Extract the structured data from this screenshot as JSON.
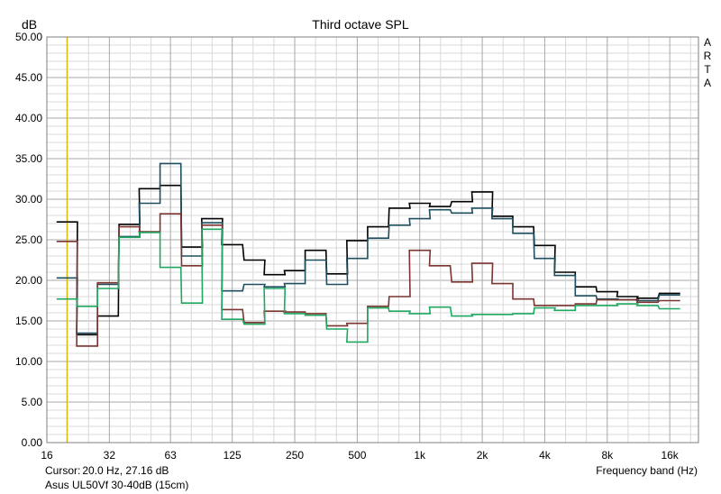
{
  "chart_data": {
    "type": "line",
    "title": "Third octave SPL",
    "ylabel": "dB",
    "xlabel": "Frequency band (Hz)",
    "watermark": "ARTA",
    "ylim": [
      0,
      50
    ],
    "yticks": [
      "0.00",
      "5.00",
      "10.00",
      "15.00",
      "20.00",
      "25.00",
      "30.00",
      "35.00",
      "40.00",
      "45.00",
      "50.00"
    ],
    "xscale": "log",
    "xlim": [
      16,
      22000
    ],
    "xticks": [
      {
        "value": 16,
        "label": "16"
      },
      {
        "value": 32,
        "label": "32"
      },
      {
        "value": 63,
        "label": "63"
      },
      {
        "value": 125,
        "label": "125"
      },
      {
        "value": 250,
        "label": "250"
      },
      {
        "value": 500,
        "label": "500"
      },
      {
        "value": 1000,
        "label": "1k"
      },
      {
        "value": 2000,
        "label": "2k"
      },
      {
        "value": 4000,
        "label": "4k"
      },
      {
        "value": 8000,
        "label": "8k"
      },
      {
        "value": 16000,
        "label": "16k"
      }
    ],
    "grid": true,
    "cursor_freq": 20,
    "bands": [
      20,
      25,
      31.5,
      40,
      50,
      63,
      80,
      100,
      125,
      160,
      200,
      250,
      315,
      400,
      500,
      630,
      800,
      1000,
      1250,
      1600,
      2000,
      2500,
      3150,
      4000,
      5000,
      6300,
      8000,
      10000,
      12500,
      16000
    ],
    "series": [
      {
        "color": "#000000",
        "values": [
          27.2,
          13.3,
          15.6,
          26.9,
          31.3,
          31.7,
          24.1,
          27.6,
          24.4,
          22.5,
          20.7,
          21.2,
          23.7,
          20.8,
          24.9,
          26.6,
          28.9,
          29.5,
          29.1,
          29.7,
          30.9,
          27.9,
          26.6,
          24.3,
          21.0,
          19.2,
          18.6,
          18.0,
          17.8,
          18.4
        ]
      },
      {
        "color": "#1f4f5f",
        "values": [
          20.3,
          13.5,
          19.5,
          25.4,
          29.5,
          34.4,
          23.0,
          27.1,
          18.7,
          19.5,
          19.2,
          19.6,
          22.5,
          19.5,
          22.7,
          25.2,
          26.8,
          27.6,
          28.7,
          28.3,
          28.9,
          27.6,
          25.8,
          22.7,
          20.6,
          18.1,
          17.7,
          17.6,
          17.5,
          18.2
        ]
      },
      {
        "color": "#7a3530",
        "values": [
          24.8,
          11.9,
          19.7,
          26.6,
          26.0,
          28.2,
          21.8,
          26.8,
          16.4,
          14.8,
          16.2,
          16.1,
          15.9,
          14.4,
          14.7,
          16.8,
          18.0,
          23.7,
          21.8,
          19.8,
          22.1,
          19.6,
          17.7,
          16.9,
          16.9,
          17.1,
          17.6,
          17.6,
          17.3,
          17.5
        ]
      },
      {
        "color": "#1fa860",
        "values": [
          17.7,
          16.8,
          19.0,
          25.3,
          25.9,
          21.6,
          17.2,
          26.3,
          15.2,
          14.6,
          19.0,
          15.9,
          15.7,
          14.0,
          12.4,
          16.6,
          16.2,
          15.9,
          16.7,
          15.6,
          15.8,
          15.8,
          15.9,
          16.6,
          16.3,
          16.9,
          16.9,
          17.1,
          16.9,
          16.5
        ]
      }
    ]
  },
  "footer": {
    "cursor_label": "Cursor:",
    "cursor_value": "20.0 Hz, 27.16 dB",
    "series_name": "Asus UL50Vf 30-40dB (15cm)"
  },
  "colors": {
    "grid": "#b0b0b0",
    "cursor_line": "#d4b800",
    "frame": "#808080"
  }
}
